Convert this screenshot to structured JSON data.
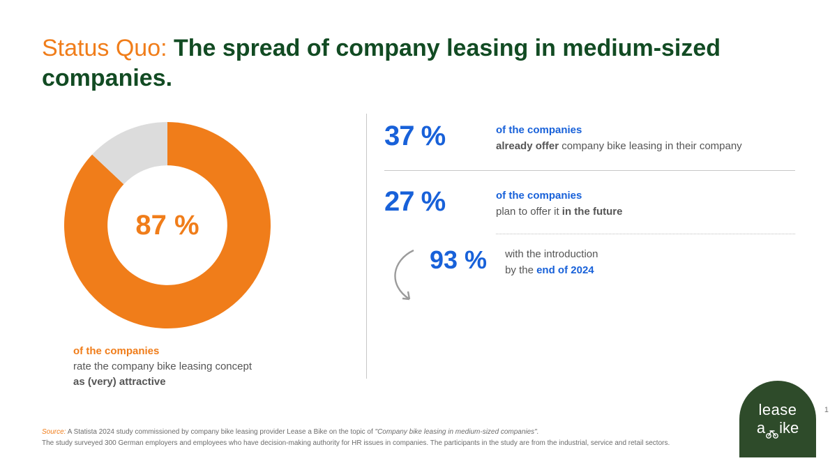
{
  "colors": {
    "orange": "#f07d1a",
    "green_dark": "#124b23",
    "blue": "#1861d9",
    "grey_text": "#555555",
    "grey_light": "#d9d9d9",
    "divider": "#c7c7c7",
    "logo_bg": "#2e4b2a"
  },
  "title": {
    "prefix": "Status Quo:",
    "main": "The spread of company leasing in medium-sized companies."
  },
  "donut": {
    "type": "donut",
    "value_pct": 87,
    "center_label": "87 %",
    "ring_color": "#f07d1a",
    "remainder_color": "#dcdcdc",
    "inner_radius_pct": 58,
    "start_angle_deg": -90,
    "caption_lead": "of the companies",
    "caption_mid": "rate the company bike leasing concept",
    "caption_tail_strong": "as (very) attractive"
  },
  "stats": [
    {
      "pct_label": "37 %",
      "lead": "of the companies",
      "body_before_bold": "",
      "body_bold": "already offer",
      "body_after_bold": " company bike leasing in their company"
    },
    {
      "pct_label": "27 %",
      "lead": "of the companies",
      "body_before_bold": "plan to offer it ",
      "body_bold": "in the future",
      "body_after_bold": ""
    }
  ],
  "substat": {
    "pct_label": "93 %",
    "line1": "with the introduction",
    "line2_plain": "by the ",
    "line2_colored": "end of 2024"
  },
  "arrow": {
    "stroke": "#9b9b9b",
    "stroke_width": 2.4
  },
  "footer": {
    "source_label": "Source:",
    "line1_a": " A Statista 2024 study commissioned by company bike leasing provider Lease a Bike on the topic of ",
    "line1_topic": "\"Company bike leasing in medium-sized companies\".",
    "line2": "The study surveyed 300 German employers and employees who have decision-making authority for HR issues in companies. The participants in the study are from the industrial, service and retail sectors."
  },
  "logo": {
    "line1": "lease",
    "line2_a": "a",
    "line2_b": "ike"
  },
  "page_number": "1"
}
